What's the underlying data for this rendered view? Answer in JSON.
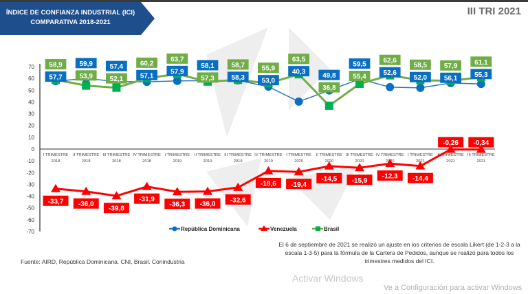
{
  "header": {
    "title_line1": "ÍNDICE DE CONFIANZA INDUSTRIAL (ICI)",
    "title_line2": "COMPARATIVA 2018-2021",
    "period": "III TRI 2021"
  },
  "colors": {
    "banner": "#1f4e8c",
    "dr": "#2e75c8",
    "dr_label": "#0a6fc2",
    "venezuela": "#ff0000",
    "brasil": "#70ad47",
    "brasil_marker": "#00b050"
  },
  "chart_data": {
    "type": "line",
    "categories": [
      "I TRIMESTRE 2018",
      "II TRIMESTRE 2018",
      "III TRIMESTRE 2018",
      "IV TRIMESTRE 2018",
      "I TRIMESTRE 2019",
      "II TRIMESTRE 2019",
      "III TRIMESTRE 2019",
      "IV TRIMESTRE 2019",
      "I TRIMESTRE 2020",
      "II TRIMESTRE 2020",
      "III TRIMESTRE 2020",
      "IV TRIMESTRE 2020",
      "I TRIMESTRE 2021",
      "II TRIMESTRE 2021",
      "III TRIMESTRE 2021"
    ],
    "ylim": [
      -70,
      70
    ],
    "yticks": [
      70,
      60,
      50,
      40,
      30,
      20,
      10,
      0,
      -10,
      -20,
      -30,
      -40,
      -50,
      -60,
      -70
    ],
    "grid": false,
    "legend": "bottom",
    "series": [
      {
        "name": "República Dominicana",
        "marker": "circle",
        "values": [
          57.7,
          59.9,
          57.4,
          57.1,
          57.9,
          58.1,
          58.3,
          53.0,
          40.3,
          49.8,
          59.5,
          52.6,
          52.0,
          56.1,
          55.3
        ],
        "labels": [
          "57,7",
          "59,9",
          "57,4",
          "57,1",
          "57,9",
          "58,1",
          "58,3",
          "53,0",
          "40,3",
          "49,8",
          "59,5",
          "52,6",
          "52,0",
          "56,1",
          "55,3"
        ]
      },
      {
        "name": "Venezuela",
        "marker": "triangle",
        "values": [
          -33.7,
          -36.0,
          -39.8,
          -31.9,
          -36.3,
          -36.0,
          -32.6,
          -18.6,
          -19.4,
          -14.5,
          -15.9,
          -12.3,
          -14.4,
          -0.26,
          -0.34
        ],
        "labels": [
          "-33,7",
          "-36,0",
          "-39,8",
          "-31,9",
          "-36,3",
          "-36,0",
          "-32,6",
          "-18,6",
          "-19,4",
          "-14,5",
          "-15,9",
          "-12,3",
          "-14,4",
          "-0,26",
          "-0,34"
        ]
      },
      {
        "name": "Brasil",
        "marker": "square",
        "values": [
          58.9,
          53.9,
          52.1,
          60.2,
          63.7,
          57.3,
          58.7,
          55.9,
          63.5,
          36.8,
          55.4,
          62.6,
          58.5,
          57.9,
          61.1
        ],
        "labels": [
          "58,9",
          "53,9",
          "52,1",
          "60,2",
          "63,7",
          "57,3",
          "58,7",
          "55,9",
          "63,5",
          "36,8",
          "55,4",
          "62,6",
          "58,5",
          "57,9",
          "61,1"
        ]
      }
    ]
  },
  "footer": {
    "source": "Fuente: AIRD, República Dominicana. CNI, Brasil. Conindustria",
    "note": "El 6 de septiembre de 2021 se realizó un ajuste en los criterios de escala Likert (de 1-2-3 a la escala 1-3-5)  para la fórmula de la Cartera de Pedidos, aunque se realizó para todos los trimestres medidos del ICI.",
    "watermark1": "Activar Windows",
    "watermark2": "Ve a Configuración para activar Windows"
  }
}
